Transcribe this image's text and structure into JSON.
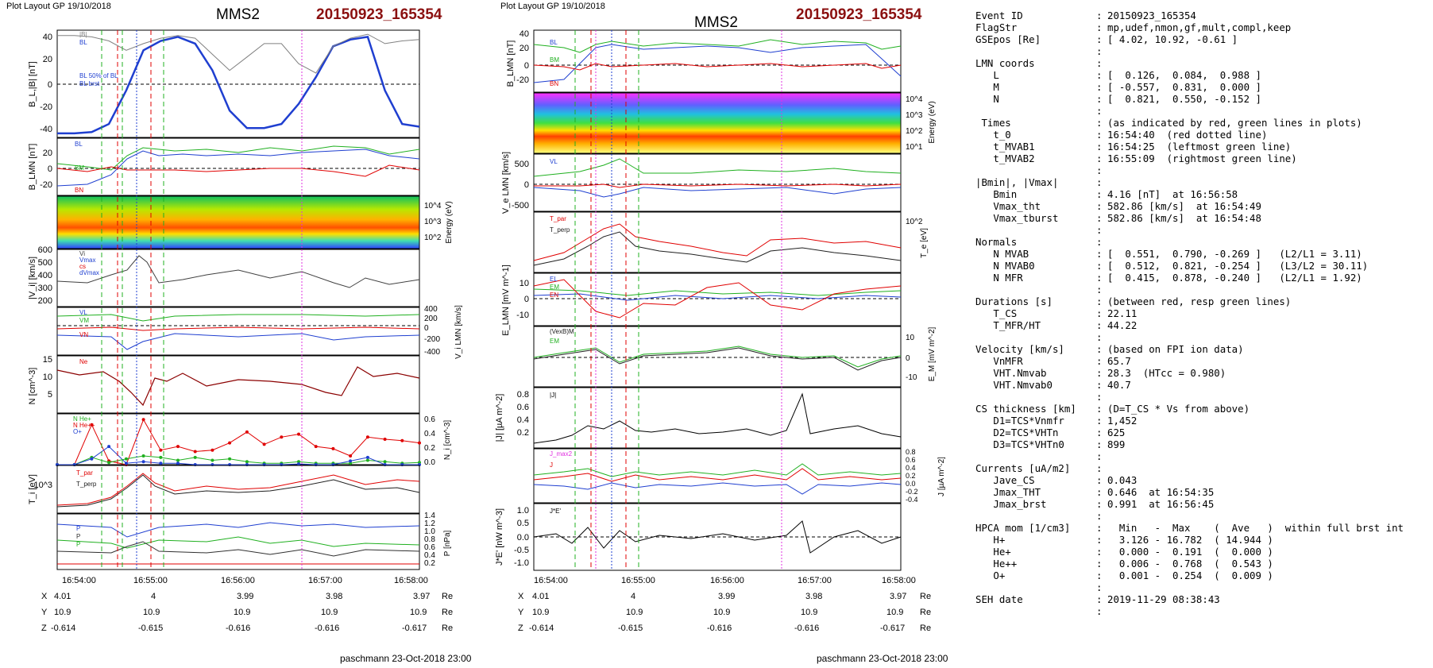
{
  "left": {
    "header": {
      "layout": "Plot Layout GP 19/10/2018",
      "spacecraft": "MMS2",
      "event": "20150923_165354"
    },
    "footer": "paschmann 23-Oct-2018 23:00",
    "axis_time": {
      "ticks": [
        "16:54:00",
        "16:55:00",
        "16:56:00",
        "16:57:00",
        "16:58:00"
      ]
    },
    "position_table": {
      "labels": [
        "X",
        "Y",
        "Z"
      ],
      "unit": "Re",
      "rows": [
        [
          "4.01",
          "4",
          "3.99",
          "3.98",
          "3.97"
        ],
        [
          "10.9",
          "10.9",
          "10.9",
          "10.9",
          "10.9"
        ],
        [
          "-0.614",
          "-0.615",
          "-0.616",
          "-0.616",
          "-0.617"
        ]
      ]
    }
  },
  "middle": {
    "header": {
      "layout": "Plot Layout GP 19/10/2018",
      "spacecraft": "MMS2",
      "event": "20150923_165354"
    },
    "footer": "paschmann 23-Oct-2018 23:00",
    "axis_time": {
      "ticks": [
        "16:54:00",
        "16:55:00",
        "16:56:00",
        "16:57:00",
        "16:58:00"
      ]
    },
    "position_table": {
      "labels": [
        "X",
        "Y",
        "Z"
      ],
      "unit": "Re",
      "rows": [
        [
          "4.01",
          "4",
          "3.99",
          "3.98",
          "3.97"
        ],
        [
          "10.9",
          "10.9",
          "10.9",
          "10.9",
          "10.9"
        ],
        [
          "-0.614",
          "-0.615",
          "-0.616",
          "-0.616",
          "-0.617"
        ]
      ]
    }
  },
  "chart_data": [
    {
      "type": "line",
      "panel": "left-BL",
      "ylabel": "B_L,|B| [nT]",
      "ylim": [
        -40,
        40
      ],
      "yticks": [
        "40",
        "20",
        "0",
        "-20",
        "-40"
      ],
      "legend": [
        "|B|",
        "BL",
        "BL 50% of BL",
        "BL brst"
      ],
      "series": [
        {
          "name": "BL",
          "color": "#1f3fd0",
          "values": [
            -37,
            -37,
            -36,
            -30,
            -5,
            25,
            32,
            35,
            30,
            10,
            -20,
            -33,
            -33,
            -30,
            -15,
            5,
            28,
            33,
            35,
            -5,
            -30,
            -32
          ]
        },
        {
          "name": "|B|",
          "color": "#808080",
          "values": [
            36,
            36,
            35,
            32,
            25,
            30,
            34,
            36,
            34,
            22,
            10,
            20,
            30,
            30,
            15,
            8,
            28,
            34,
            37,
            30,
            32,
            33
          ]
        }
      ]
    },
    {
      "type": "line",
      "panel": "left-BLMN",
      "ylabel": "B_LMN [nT]",
      "ylim": [
        -35,
        35
      ],
      "yticks": [
        "20",
        "0",
        "-20"
      ],
      "legend": [
        "BL",
        "BM",
        "BN"
      ]
    },
    {
      "type": "heatmap",
      "panel": "left-ion-spectrogram",
      "ylabel": "Energy (eV)",
      "yticks": [
        "10^4",
        "10^3",
        "10^2"
      ]
    },
    {
      "type": "line",
      "panel": "left-Vi",
      "ylabel": "|V_i| [km/s]",
      "ylim": [
        150,
        600
      ],
      "yticks": [
        "600",
        "500",
        "400",
        "300",
        "200"
      ],
      "legend": [
        "Vi",
        "Vmax",
        "cs",
        "dVmax"
      ]
    },
    {
      "type": "line",
      "panel": "left-ViLMN",
      "ylabel": "V_i LMN [km/s]",
      "ylim": [
        -400,
        400
      ],
      "yticks": [
        "400",
        "200",
        "0",
        "-200",
        "-400"
      ],
      "legend": [
        "VL",
        "VM",
        "VN"
      ]
    },
    {
      "type": "line",
      "panel": "left-N",
      "ylabel": "N [cm^-3]",
      "ylim": [
        0,
        16
      ],
      "yticks": [
        "15",
        "10",
        "5"
      ],
      "legend": [
        "Ne"
      ]
    },
    {
      "type": "line",
      "panel": "left-HPCA",
      "ylabel": "N_i [cm^-3]",
      "ylim": [
        0,
        0.7
      ],
      "yticks": [
        "0.6",
        "0.4",
        "0.2",
        "0.0"
      ],
      "legend": [
        "N He+",
        "N He++",
        "O+"
      ],
      "series": [
        {
          "name": "N He++",
          "color": "#e00000",
          "values": [
            0.0,
            0.0,
            0.55,
            0.05,
            0.0,
            0.62,
            0.2,
            0.25,
            0.18,
            0.2,
            0.3,
            0.45,
            0.28,
            0.38,
            0.42,
            0.25,
            0.22,
            0.12,
            0.38,
            0.35,
            0.33,
            0.3
          ]
        },
        {
          "name": "N He+",
          "color": "#20b020",
          "values": [
            0.0,
            0.0,
            0.1,
            0.03,
            0.08,
            0.12,
            0.1,
            0.06,
            0.1,
            0.06,
            0.08,
            0.04,
            0.02,
            0.02,
            0.04,
            0.02,
            0.02,
            0.02,
            0.06,
            0.04,
            0.02,
            0.03
          ]
        },
        {
          "name": "O+",
          "color": "#1f3fd0",
          "values": [
            0.0,
            0.0,
            0.08,
            0.25,
            0.02,
            0.04,
            0.02,
            0.02,
            0.0,
            0.0,
            0.0,
            0.0,
            0.0,
            0.0,
            0.01,
            0.0,
            0.0,
            0.05,
            0.1,
            0.0,
            0.0,
            0.0
          ]
        }
      ]
    },
    {
      "type": "line",
      "panel": "left-T",
      "ylabel": "T_i [eV]",
      "yticks": [
        "10^3"
      ],
      "legend": [
        "T_par",
        "T_perp"
      ]
    },
    {
      "type": "line",
      "panel": "left-P",
      "ylabel": "P [nPa]",
      "ylim": [
        0,
        1.4
      ],
      "yticks": [
        "1.4",
        "1.2",
        "1.0",
        "0.8",
        "0.6",
        "0.4",
        "0.2"
      ],
      "legend": [
        "P",
        "P",
        "P"
      ]
    },
    {
      "type": "line",
      "panel": "mid-BLMN",
      "ylabel": "B_LMN [nT]",
      "ylim": [
        -35,
        45
      ],
      "yticks": [
        "40",
        "20",
        "0",
        "-20"
      ],
      "legend": [
        "BL",
        "BM",
        "BN"
      ]
    },
    {
      "type": "heatmap",
      "panel": "mid-electron-spectrogram",
      "ylabel": "Energy (eV)",
      "yticks": [
        "10^4",
        "10^3",
        "10^2",
        "10^1"
      ]
    },
    {
      "type": "line",
      "panel": "mid-VeLMN",
      "ylabel": "V_e LMN [km/s]",
      "ylim": [
        -700,
        700
      ],
      "yticks": [
        "500",
        "0",
        "-500"
      ],
      "legend": [
        "VL"
      ]
    },
    {
      "type": "line",
      "panel": "mid-Te",
      "ylabel": "T_e [eV]",
      "yticks": [
        "10^2"
      ],
      "legend": [
        "T_par",
        "T_perp"
      ]
    },
    {
      "type": "line",
      "panel": "mid-ELMN",
      "ylabel": "E_LMN [mV m^-1]",
      "ylim": [
        -15,
        15
      ],
      "yticks": [
        "10",
        "0",
        "-10"
      ],
      "legend": [
        "EL",
        "EM",
        "EN"
      ]
    },
    {
      "type": "line",
      "panel": "mid-EM",
      "ylabel": "E_M [mV m^-2]",
      "ylim": [
        -14,
        14
      ],
      "yticks": [
        "10",
        "0",
        "-10"
      ],
      "legend": [
        "(VexB)M",
        "EM"
      ]
    },
    {
      "type": "line",
      "panel": "mid-J",
      "ylabel": "|J| [µA m^-2]",
      "ylim": [
        0,
        1.0
      ],
      "yticks": [
        "0.8",
        "0.6",
        "0.4",
        "0.2"
      ],
      "legend": [
        "|J|"
      ]
    },
    {
      "type": "line",
      "panel": "mid-Jcomp",
      "ylabel": "J [µA m^-2]",
      "ylim": [
        -0.5,
        0.9
      ],
      "yticks": [
        "0.8",
        "0.6",
        "0.4",
        "0.2",
        "0.0",
        "-0.2",
        "-0.4"
      ],
      "legend": [
        "J_max2",
        "J"
      ]
    },
    {
      "type": "line",
      "panel": "mid-JE",
      "ylabel": "J*E' [nW m^-3]",
      "ylim": [
        -1.2,
        1.2
      ],
      "yticks": [
        "1.0",
        "0.5",
        "0.0",
        "-0.5",
        "-1.0"
      ],
      "legend": [
        "J*E'"
      ]
    }
  ],
  "info": {
    "rows": [
      {
        "label": "Event ID",
        "value": "20150923_165354"
      },
      {
        "label": "FlagStr",
        "value": "mp,udef,nmon,gf,mult,compl,keep"
      },
      {
        "label": "GSEpos [Re]",
        "value": "[ 4.02, 10.92, -0.61 ]"
      },
      {
        "label": "",
        "value": ""
      },
      {
        "label": "LMN coords",
        "value": ""
      },
      {
        "label": "   L",
        "value": "[  0.126,  0.084,  0.988 ]"
      },
      {
        "label": "   M",
        "value": "[ -0.557,  0.831,  0.000 ]"
      },
      {
        "label": "   N",
        "value": "[  0.821,  0.550, -0.152 ]"
      },
      {
        "label": "",
        "value": ""
      },
      {
        "label": " Times",
        "value": "(as indicated by red, green lines in plots)"
      },
      {
        "label": "   t_0",
        "value": "16:54:40  (red dotted line)"
      },
      {
        "label": "   t_MVAB1",
        "value": "16:54:25  (leftmost green line)"
      },
      {
        "label": "   t_MVAB2",
        "value": "16:55:09  (rightmost green line)"
      },
      {
        "label": "",
        "value": ""
      },
      {
        "label": "|Bmin|, |Vmax|",
        "value": ""
      },
      {
        "label": "   Bmin",
        "value": "4.16 [nT]  at 16:56:58"
      },
      {
        "label": "   Vmax_tht",
        "value": "582.86 [km/s]  at 16:54:49"
      },
      {
        "label": "   Vmax_tburst",
        "value": "582.86 [km/s]  at 16:54:48"
      },
      {
        "label": "",
        "value": ""
      },
      {
        "label": "Normals",
        "value": ""
      },
      {
        "label": "   N MVAB",
        "value": "[  0.551,  0.790, -0.269 ]   (L2/L1 = 3.11)"
      },
      {
        "label": "   N MVAB0",
        "value": "[  0.512,  0.821, -0.254 ]   (L3/L2 = 30.11)"
      },
      {
        "label": "   N MFR",
        "value": "[  0.415,  0.878, -0.240 ]   (L2/L1 = 1.92)"
      },
      {
        "label": "",
        "value": ""
      },
      {
        "label": "Durations [s]",
        "value": "(between red, resp green lines)"
      },
      {
        "label": "   T_CS",
        "value": "22.11"
      },
      {
        "label": "   T_MFR/HT",
        "value": "44.22"
      },
      {
        "label": "",
        "value": ""
      },
      {
        "label": "Velocity [km/s]",
        "value": "(based on FPI ion data)"
      },
      {
        "label": "   VnMFR",
        "value": "65.7"
      },
      {
        "label": "   VHT.Nmvab",
        "value": "28.3  (HTcc = 0.980)"
      },
      {
        "label": "   VHT.Nmvab0",
        "value": "40.7"
      },
      {
        "label": "",
        "value": ""
      },
      {
        "label": "CS thickness [km]",
        "value": "(D=T_CS * Vs from above)"
      },
      {
        "label": "   D1=TCS*Vnmfr",
        "value": "1,452"
      },
      {
        "label": "   D2=TCS*VHTn",
        "value": "625"
      },
      {
        "label": "   D3=TCS*VHTn0",
        "value": "899"
      },
      {
        "label": "",
        "value": ""
      },
      {
        "label": "Currents [uA/m2]",
        "value": ""
      },
      {
        "label": "   Jave_CS",
        "value": "0.043"
      },
      {
        "label": "   Jmax_THT",
        "value": "0.646  at 16:54:35"
      },
      {
        "label": "   Jmax_brst",
        "value": "0.991  at 16:56:45"
      },
      {
        "label": "",
        "value": ""
      },
      {
        "label": "HPCA mom [1/cm3]",
        "value": "  Min   -  Max    (  Ave   )  within full brst int"
      },
      {
        "label": "   H+",
        "value": "  3.126 - 16.782  ( 14.944 )"
      },
      {
        "label": "   He+",
        "value": "  0.000 -  0.191  (  0.000 )"
      },
      {
        "label": "   He++",
        "value": "  0.006 -  0.768  (  0.543 )"
      },
      {
        "label": "   O+",
        "value": "  0.001 -  0.254  (  0.009 )"
      },
      {
        "label": "",
        "value": ""
      },
      {
        "label": "SEH date",
        "value": "2019-11-29 08:38:43"
      },
      {
        "label": "",
        "value": ""
      }
    ]
  }
}
